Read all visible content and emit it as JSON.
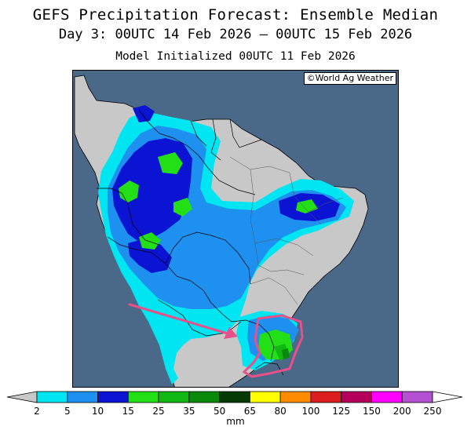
{
  "header": {
    "title": "GEFS Precipitation Forecast: Ensemble Median",
    "period": "Day 3: 00UTC 14 Feb 2026 — 00UTC 15 Feb 2026",
    "init": "Model Initialized 00UTC 11 Feb 2026"
  },
  "map": {
    "credit": "©World Ag Weather",
    "colors": {
      "ocean": "#4a6888",
      "land": "#c8c8c8",
      "border": "#000000",
      "annotation": "#e8508a"
    },
    "annotations": [
      {
        "type": "arrow",
        "color": "#e8508a"
      },
      {
        "type": "outline",
        "color": "#e8508a"
      }
    ]
  },
  "colorbar": {
    "units": "mm",
    "labels": [
      "2",
      "5",
      "10",
      "15",
      "25",
      "35",
      "50",
      "65",
      "80",
      "100",
      "125",
      "150",
      "200",
      "250"
    ],
    "colors": [
      "#00e5f2",
      "#1e90f0",
      "#0a14d2",
      "#23e016",
      "#12b812",
      "#0a8a0a",
      "#053a05",
      "#ffff00",
      "#ff8c00",
      "#dc1e1e",
      "#b4005a",
      "#ff00ff",
      "#b450d2"
    ]
  }
}
